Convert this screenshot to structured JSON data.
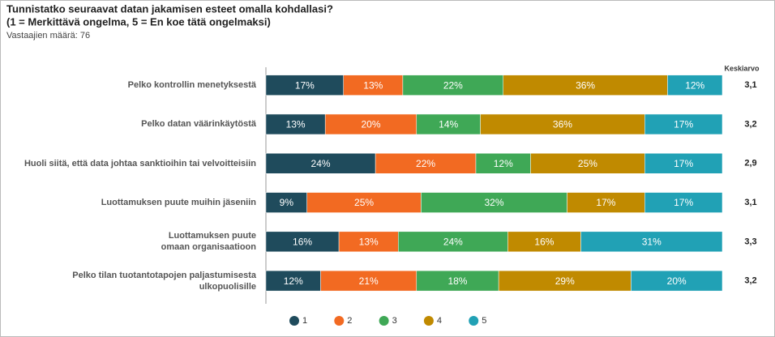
{
  "chart_data": {
    "type": "stacked-bar-horizontal",
    "title": "Tunnistatko seuraavat datan jakamisen esteet omalla kohdallasi?",
    "subtitle": "(1 = Merkittävä ongelma, 5 = En koe tätä ongelmaksi)",
    "note": "Vastaajien määrä: 76",
    "average_header": "Keskiarvo",
    "averages": [
      "3,1",
      "3,2",
      "2,9",
      "3,1",
      "3,3",
      "3,2"
    ],
    "categories": [
      "Pelko kontrollin menetyksestä",
      "Pelko datan väärinkäytöstä",
      "Huoli siitä, että data johtaa sanktioihin tai velvoitteisiin",
      "Luottamuksen puute muihin jäseniin",
      "Luottamuksen puute\nomaan organisaatioon",
      "Pelko tilan tuotantotapojen paljastumisesta\nulkopuolisille"
    ],
    "xlim": [
      0,
      100
    ],
    "series": [
      {
        "name": "1",
        "color": "#1f4b5c",
        "values": [
          17,
          13,
          24,
          9,
          16,
          12
        ],
        "value_labels": [
          "17%",
          "13%",
          "24%",
          "9%",
          "16%",
          "12%"
        ]
      },
      {
        "name": "2",
        "color": "#f26a22",
        "values": [
          13,
          20,
          22,
          25,
          13,
          21
        ],
        "value_labels": [
          "13%",
          "20%",
          "22%",
          "25%",
          "13%",
          "21%"
        ]
      },
      {
        "name": "3",
        "color": "#3fa856",
        "values": [
          22,
          14,
          12,
          32,
          24,
          18
        ],
        "value_labels": [
          "22%",
          "14%",
          "12%",
          "32%",
          "24%",
          "18%"
        ]
      },
      {
        "name": "4",
        "color": "#c08a00",
        "values": [
          36,
          36,
          25,
          17,
          16,
          29
        ],
        "value_labels": [
          "36%",
          "36%",
          "25%",
          "17%",
          "16%",
          "29%"
        ]
      },
      {
        "name": "5",
        "color": "#21a1b5",
        "values": [
          12,
          17,
          17,
          17,
          31,
          20
        ],
        "value_labels": [
          "12%",
          "17%",
          "17%",
          "17%",
          "31%",
          "20%"
        ]
      }
    ]
  }
}
